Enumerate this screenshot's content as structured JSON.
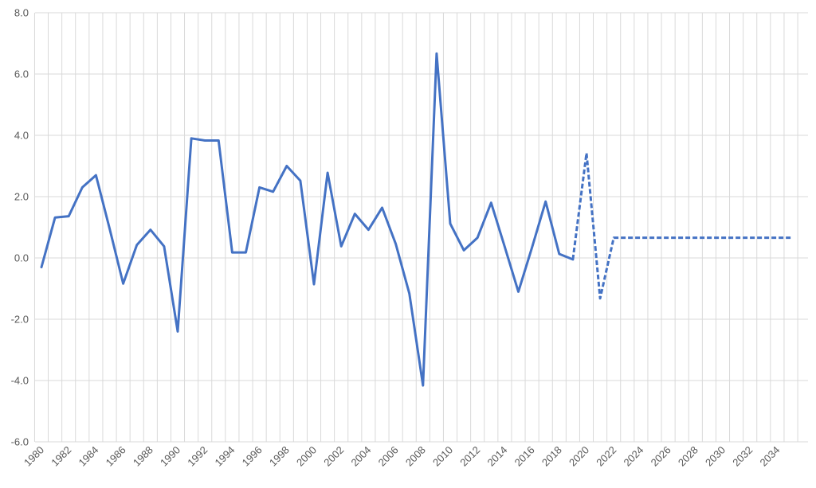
{
  "chart_data": {
    "type": "line",
    "title": "",
    "xlabel": "",
    "ylabel": "",
    "grid": true,
    "legend": "none",
    "xlim": [
      1980,
      2035
    ],
    "ylim": [
      -6.0,
      8.0
    ],
    "y_ticks": [
      "8.0",
      "6.0",
      "4.0",
      "2.0",
      "0.0",
      "-2.0",
      "-4.0",
      "-6.0"
    ],
    "y_tick_values": [
      8,
      6,
      4,
      2,
      0,
      -2,
      -4,
      -6
    ],
    "x_tick_labels": [
      "1980",
      "1982",
      "1984",
      "1986",
      "1988",
      "1990",
      "1992",
      "1994",
      "1996",
      "1998",
      "2000",
      "2002",
      "2004",
      "2006",
      "2008",
      "2010",
      "2012",
      "2014",
      "2016",
      "2018",
      "2020",
      "2022",
      "2024",
      "2026",
      "2028",
      "2030",
      "2032",
      "2034"
    ],
    "color": "#4472c4",
    "series": [
      {
        "style": "solid",
        "points": [
          [
            1980,
            -0.3
          ],
          [
            1981,
            1.32
          ],
          [
            1982,
            1.36
          ],
          [
            1983,
            2.3
          ],
          [
            1984,
            2.7
          ],
          [
            1985,
            0.96
          ],
          [
            1986,
            -0.84
          ],
          [
            1987,
            0.42
          ],
          [
            1988,
            0.92
          ],
          [
            1989,
            0.38
          ],
          [
            1990,
            -2.4
          ],
          [
            1991,
            3.9
          ],
          [
            1992,
            3.83
          ],
          [
            1993,
            3.83
          ],
          [
            1994,
            0.18
          ],
          [
            1995,
            0.18
          ],
          [
            1996,
            2.3
          ],
          [
            1997,
            2.16
          ],
          [
            1998,
            3.0
          ],
          [
            1999,
            2.52
          ],
          [
            2000,
            -0.86
          ],
          [
            2001,
            2.78
          ],
          [
            2002,
            0.38
          ],
          [
            2003,
            1.44
          ],
          [
            2004,
            0.92
          ],
          [
            2005,
            1.64
          ],
          [
            2006,
            0.46
          ],
          [
            2007,
            -1.16
          ],
          [
            2008,
            -4.16
          ],
          [
            2009,
            6.67
          ],
          [
            2010,
            1.12
          ],
          [
            2011,
            0.25
          ],
          [
            2012,
            0.66
          ],
          [
            2013,
            1.8
          ],
          [
            2014,
            0.36
          ],
          [
            2015,
            -1.1
          ],
          [
            2016,
            0.34
          ],
          [
            2017,
            1.84
          ],
          [
            2018,
            0.13
          ],
          [
            2019,
            -0.05
          ]
        ]
      },
      {
        "style": "dashed",
        "points": [
          [
            2019,
            -0.05
          ],
          [
            2020,
            3.42
          ],
          [
            2021,
            -1.32
          ],
          [
            2022,
            0.66
          ],
          [
            2023,
            0.66
          ],
          [
            2024,
            0.66
          ],
          [
            2025,
            0.66
          ],
          [
            2026,
            0.66
          ],
          [
            2027,
            0.66
          ],
          [
            2028,
            0.66
          ],
          [
            2029,
            0.66
          ],
          [
            2030,
            0.66
          ],
          [
            2031,
            0.66
          ],
          [
            2032,
            0.66
          ],
          [
            2033,
            0.66
          ],
          [
            2034,
            0.66
          ],
          [
            2035,
            0.66
          ]
        ]
      }
    ]
  }
}
